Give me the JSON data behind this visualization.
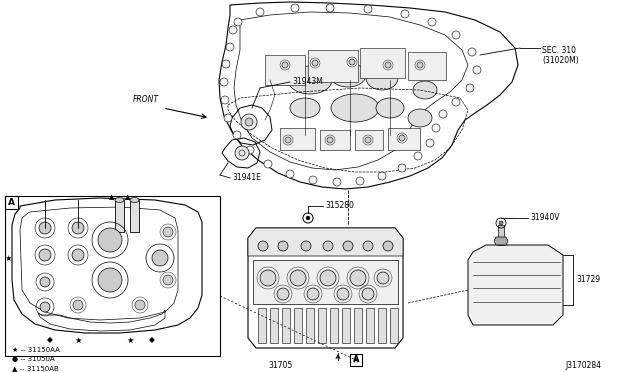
{
  "background_color": "#ffffff",
  "figure_width": 6.4,
  "figure_height": 3.72,
  "dpi": 100,
  "labels": {
    "front_arrow": "FRONT",
    "part_31943M": "31943M",
    "part_31941E": "31941E",
    "part_SEC310": "SEC. 310\n(31020M)",
    "part_315280": "315280",
    "part_31705": "31705",
    "part_31940V": "31940V",
    "part_31729": "31729",
    "box_A_label": "A",
    "diagram_id": "J3170284",
    "legend1": "★ -- 31150AA",
    "legend2": "● -- 31050A",
    "legend3": "▲ -- 31150AB"
  },
  "font_size_label": 5.5,
  "font_size_small": 5,
  "font_size_legend": 5,
  "font_size_id": 5.5
}
